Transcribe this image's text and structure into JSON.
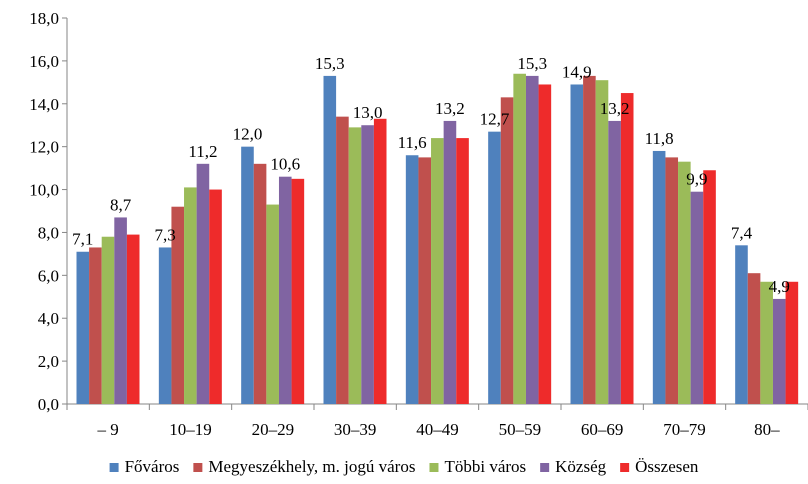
{
  "chart_data": {
    "type": "bar",
    "title": "",
    "xlabel": "",
    "ylabel": "",
    "ylim": [
      0,
      18
    ],
    "y_ticks": [
      "0,0",
      "2,0",
      "4,0",
      "6,0",
      "8,0",
      "10,0",
      "12,0",
      "14,0",
      "16,0",
      "18,0"
    ],
    "grid": false,
    "legend_position": "bottom",
    "categories": [
      "– 9",
      "10–19",
      "20–29",
      "30–39",
      "40–49",
      "50–59",
      "60–69",
      "70–79",
      "80–"
    ],
    "series": [
      {
        "name": "Főváros",
        "color": "#4F81BD",
        "values": [
          7.1,
          7.3,
          12.0,
          15.3,
          11.6,
          12.7,
          14.9,
          11.8,
          7.4
        ]
      },
      {
        "name": "Megyeszékhely, m. jogú város",
        "color": "#C0504D",
        "values": [
          7.3,
          9.2,
          11.2,
          13.4,
          11.5,
          14.3,
          15.3,
          11.5,
          6.1
        ]
      },
      {
        "name": "Többi város",
        "color": "#9BBB59",
        "values": [
          7.8,
          10.1,
          9.3,
          12.9,
          12.4,
          15.4,
          15.1,
          11.3,
          5.7
        ]
      },
      {
        "name": "Község",
        "color": "#8064A2",
        "values": [
          8.7,
          11.2,
          10.6,
          13.0,
          13.2,
          15.3,
          13.2,
          9.9,
          4.9
        ]
      },
      {
        "name": "Összesen",
        "color": "#EE2B2B",
        "values": [
          7.9,
          10.0,
          10.5,
          13.3,
          12.4,
          14.9,
          14.5,
          10.9,
          5.7
        ]
      }
    ],
    "data_labels": [
      {
        "category_index": 0,
        "series_index": 0,
        "text": "7,1"
      },
      {
        "category_index": 0,
        "series_index": 3,
        "text": "8,7"
      },
      {
        "category_index": 1,
        "series_index": 0,
        "text": "7,3"
      },
      {
        "category_index": 1,
        "series_index": 3,
        "text": "11,2"
      },
      {
        "category_index": 2,
        "series_index": 0,
        "text": "12,0"
      },
      {
        "category_index": 2,
        "series_index": 3,
        "text": "10,6"
      },
      {
        "category_index": 3,
        "series_index": 0,
        "text": "15,3"
      },
      {
        "category_index": 3,
        "series_index": 3,
        "text": "13,0"
      },
      {
        "category_index": 4,
        "series_index": 0,
        "text": "11,6"
      },
      {
        "category_index": 4,
        "series_index": 3,
        "text": "13,2"
      },
      {
        "category_index": 5,
        "series_index": 0,
        "text": "12,7"
      },
      {
        "category_index": 5,
        "series_index": 3,
        "text": "15,3"
      },
      {
        "category_index": 6,
        "series_index": 0,
        "text": "14,9"
      },
      {
        "category_index": 6,
        "series_index": 3,
        "text": "13,2"
      },
      {
        "category_index": 7,
        "series_index": 0,
        "text": "11,8"
      },
      {
        "category_index": 7,
        "series_index": 3,
        "text": "9,9"
      },
      {
        "category_index": 8,
        "series_index": 0,
        "text": "7,4"
      },
      {
        "category_index": 8,
        "series_index": 3,
        "text": "4,9"
      }
    ]
  }
}
